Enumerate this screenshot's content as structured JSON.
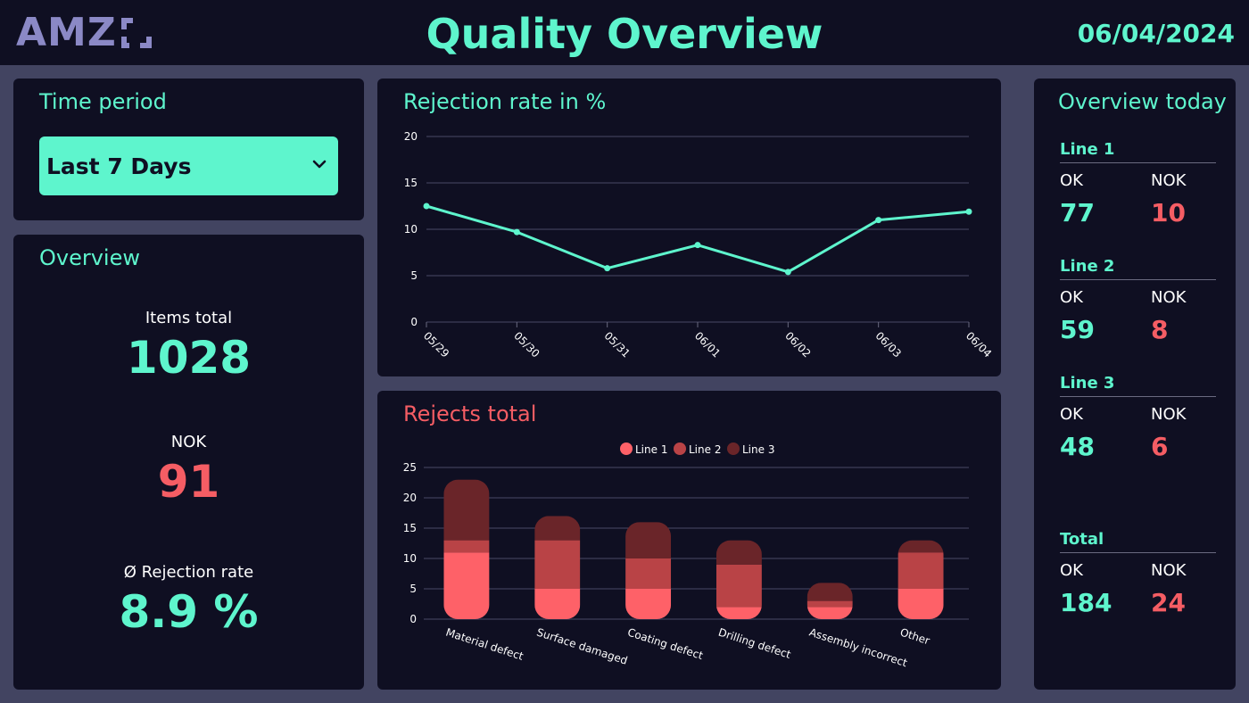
{
  "header": {
    "logo_text": "AMZ",
    "title": "Quality Overview",
    "date": "06/04/2024"
  },
  "time_period": {
    "title": "Time period",
    "selected": "Last 7 Days"
  },
  "overview": {
    "title": "Overview",
    "items_total_label": "Items total",
    "items_total_value": "1028",
    "nok_label": "NOK",
    "nok_value": "91",
    "rejection_label": "Ø Rejection rate",
    "rejection_value": "8.9 %"
  },
  "today": {
    "title": "Overview today",
    "ok_label": "OK",
    "nok_label": "NOK",
    "lines": [
      {
        "name": "Line 1",
        "ok": "77",
        "nok": "10"
      },
      {
        "name": "Line 2",
        "ok": "59",
        "nok": "8"
      },
      {
        "name": "Line 3",
        "ok": "48",
        "nok": "6"
      }
    ],
    "total": {
      "name": "Total",
      "ok": "184",
      "nok": "24"
    }
  },
  "colors": {
    "accent": "#5ef5cd",
    "alert": "#f55d64",
    "line1": "#fe6168",
    "line2": "#b94346",
    "line3": "#6a2529"
  },
  "chart_data": [
    {
      "type": "line",
      "title": "Rejection rate in %",
      "x": [
        "05/29",
        "05/30",
        "05/31",
        "06/01",
        "06/02",
        "06/03",
        "06/04"
      ],
      "series": [
        {
          "values": [
            12.5,
            9.7,
            5.8,
            8.3,
            5.4,
            11.0,
            11.9
          ]
        }
      ],
      "ylim": [
        0,
        20
      ],
      "yticks": [
        0,
        5,
        10,
        15,
        20
      ],
      "grid": true
    },
    {
      "type": "bar",
      "stacked": true,
      "title": "Rejects total",
      "categories": [
        "Material defect",
        "Surface damaged",
        "Coating defect",
        "Drilling defect",
        "Assembly incorrect",
        "Other"
      ],
      "series": [
        {
          "name": "Line 1",
          "values": [
            11,
            5,
            5,
            2,
            2,
            5
          ]
        },
        {
          "name": "Line 2",
          "values": [
            2,
            8,
            5,
            7,
            1,
            6
          ]
        },
        {
          "name": "Line 3",
          "values": [
            10,
            4,
            6,
            4,
            3,
            2
          ]
        }
      ],
      "ylim": [
        0,
        25
      ],
      "yticks": [
        0,
        5,
        10,
        15,
        20,
        25
      ],
      "legend": "top",
      "grid": true
    }
  ]
}
